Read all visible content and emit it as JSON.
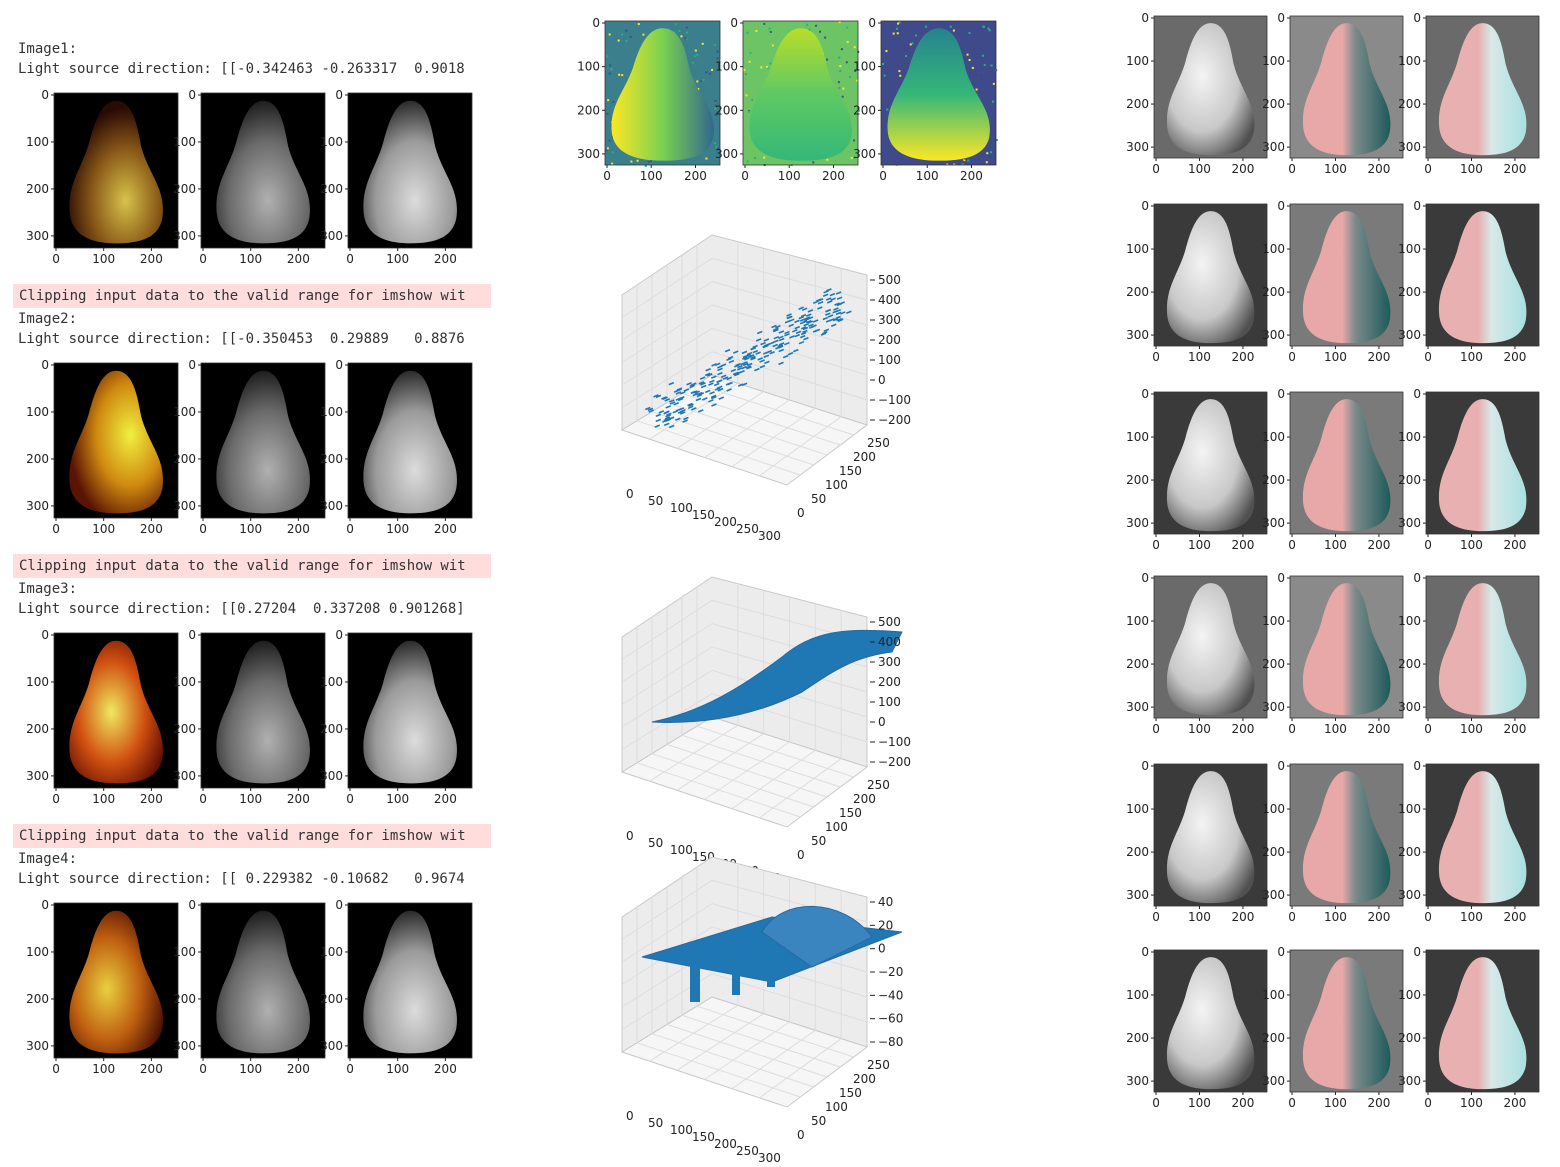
{
  "left_column": {
    "blocks": [
      {
        "image_label": "Image1:",
        "light_line": "Light source direction: [[-0.342463 -0.263317  0.9018",
        "warning": ""
      },
      {
        "image_label": "Image2:",
        "light_line": "Light source direction: [[-0.350453  0.29889   0.8876",
        "warning": "Clipping input data to the valid range for imshow wit"
      },
      {
        "image_label": "Image3:",
        "light_line": "Light source direction: [[0.27204  0.337208 0.901268]",
        "warning": "Clipping input data to the valid range for imshow wit"
      },
      {
        "image_label": "Image4:",
        "light_line": "Light source direction: [[ 0.229382 -0.10682   0.9674",
        "warning": "Clipping input data to the valid range for imshow wit"
      }
    ],
    "image_axes": {
      "y_ticks": [
        "0",
        "100",
        "200",
        "300"
      ],
      "x_ticks": [
        "0",
        "100",
        "200"
      ]
    }
  },
  "middle_column": {
    "heatmaps": {
      "y_ticks": [
        "0",
        "100",
        "200",
        "300"
      ],
      "x_ticks": [
        "0",
        "100",
        "200"
      ]
    },
    "plots3d": [
      {
        "type": "scatter3d",
        "x_ticks": [
          "0",
          "50",
          "100",
          "150",
          "200",
          "250",
          "300"
        ],
        "y_ticks": [
          "0",
          "50",
          "100",
          "150",
          "200",
          "250"
        ],
        "z_ticks": [
          "500",
          "400",
          "300",
          "200",
          "100",
          "0",
          "−100",
          "−200"
        ]
      },
      {
        "type": "surface3d",
        "x_ticks": [
          "0",
          "50",
          "100",
          "150",
          "200",
          "250",
          "300"
        ],
        "y_ticks": [
          "0",
          "50",
          "100",
          "150",
          "200",
          "250"
        ],
        "z_ticks": [
          "500",
          "400",
          "300",
          "200",
          "100",
          "0",
          "−100",
          "−200"
        ]
      },
      {
        "type": "surface3d",
        "x_ticks": [
          "0",
          "50",
          "100",
          "150",
          "200",
          "250",
          "300"
        ],
        "y_ticks": [
          "0",
          "50",
          "100",
          "150",
          "200",
          "250"
        ],
        "z_ticks": [
          "40",
          "20",
          "0",
          "−20",
          "−40",
          "−60",
          "−80"
        ]
      }
    ]
  },
  "right_column": {
    "rows": 6,
    "cols": 3,
    "y_ticks": [
      "0",
      "100",
      "200",
      "300"
    ],
    "x_ticks": [
      "0",
      "100",
      "200"
    ]
  },
  "colors": {
    "warning_bg": "#ffdddd",
    "plot_blue": "#1f77b4"
  }
}
